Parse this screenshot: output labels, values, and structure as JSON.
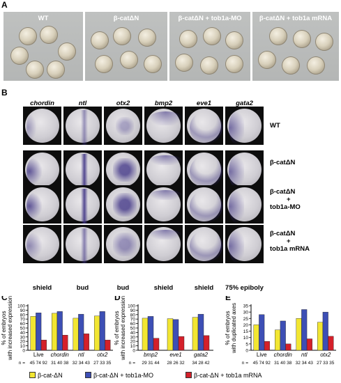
{
  "panel_a": {
    "label": "A",
    "headers": [
      "WT",
      "β-catΔN",
      "β-catΔN + tob1a-MO",
      "β-catΔN + tob1a mRNA"
    ]
  },
  "panel_b": {
    "label": "B",
    "genes": [
      "chordin",
      "ntl",
      "otx2",
      "bmp2",
      "eve1",
      "gata2"
    ],
    "rows": [
      {
        "line1": "WT",
        "line2": "",
        "line3": ""
      },
      {
        "line1": "β-catΔN",
        "line2": "",
        "line3": ""
      },
      {
        "line1": "β-catΔN",
        "line2": "+",
        "line3": "tob1a-MO"
      },
      {
        "line1": "β-catΔN",
        "line2": "+",
        "line3": "tob1a mRNA"
      }
    ],
    "stages": [
      "shield",
      "bud",
      "bud",
      "shield",
      "shield",
      "75% epiboly"
    ]
  },
  "legend": {
    "items": [
      {
        "label": "β-cat-ΔN",
        "color": "#f2e632"
      },
      {
        "label": "β-cat-ΔN + tob1a-MO",
        "color": "#3d4fb5"
      },
      {
        "label": "β-cat-ΔN + tob1a mRNA",
        "color": "#d4202a"
      }
    ]
  },
  "chart_data": [
    {
      "type": "bar",
      "panel": "C",
      "ylabel": "% of embryos with increased expression",
      "ylim": [
        0,
        100
      ],
      "yticks": [
        0,
        10,
        20,
        30,
        40,
        50,
        60,
        70,
        80,
        90,
        100
      ],
      "categories": [
        "Live",
        "chordin",
        "ntl",
        "otx2"
      ],
      "n_prefix": "n =",
      "n_labels": [
        "45 74 92",
        "31 40 38",
        "32 34 43",
        "27 33 35"
      ],
      "series": [
        {
          "name": "β-cat-ΔN",
          "color": "#f2e632",
          "values": [
            76,
            83,
            72,
            77
          ]
        },
        {
          "name": "β-cat-ΔN + tob1a-MO",
          "color": "#3d4fb5",
          "values": [
            84,
            87,
            81,
            87
          ]
        },
        {
          "name": "β-cat-ΔN + tob1a mRNA",
          "color": "#d4202a",
          "values": [
            23,
            34,
            37,
            23
          ]
        }
      ]
    },
    {
      "type": "bar",
      "panel": "D",
      "ylabel": "% of embryos with increased expression",
      "ylim": [
        0,
        100
      ],
      "yticks": [
        0,
        10,
        20,
        30,
        40,
        50,
        60,
        70,
        80,
        90,
        100
      ],
      "categories": [
        "bmp2",
        "eve1",
        "gata2"
      ],
      "n_prefix": "n =",
      "n_labels": [
        "29 31 44",
        "28 26 32",
        "34 28 42"
      ],
      "series": [
        {
          "name": "β-cat-ΔN",
          "color": "#f2e632",
          "values": [
            72,
            71,
            74
          ]
        },
        {
          "name": "β-cat-ΔN + tob1a-MO",
          "color": "#3d4fb5",
          "values": [
            76,
            69,
            81
          ]
        },
        {
          "name": "β-cat-ΔN + tob1a mRNA",
          "color": "#d4202a",
          "values": [
            27,
            31,
            33
          ]
        }
      ]
    },
    {
      "type": "bar",
      "panel": "E",
      "ylabel": "% of embryos with duplicated axes",
      "ylim": [
        0,
        35
      ],
      "yticks": [
        0,
        5,
        10,
        15,
        20,
        25,
        30,
        35
      ],
      "categories": [
        "Live",
        "chordin",
        "ntl",
        "otx2"
      ],
      "n_prefix": "n =",
      "n_labels": [
        "45 74 92",
        "31 40 38",
        "32 34 43",
        "27 33 35"
      ],
      "series": [
        {
          "name": "β-cat-ΔN",
          "color": "#f2e632",
          "values": [
            20,
            16,
            25,
            22
          ]
        },
        {
          "name": "β-cat-ΔN + tob1a-MO",
          "color": "#3d4fb5",
          "values": [
            28,
            23,
            32,
            30
          ]
        },
        {
          "name": "β-cat-ΔN + tob1a mRNA",
          "color": "#d4202a",
          "values": [
            7,
            5,
            9,
            11
          ]
        }
      ]
    }
  ]
}
